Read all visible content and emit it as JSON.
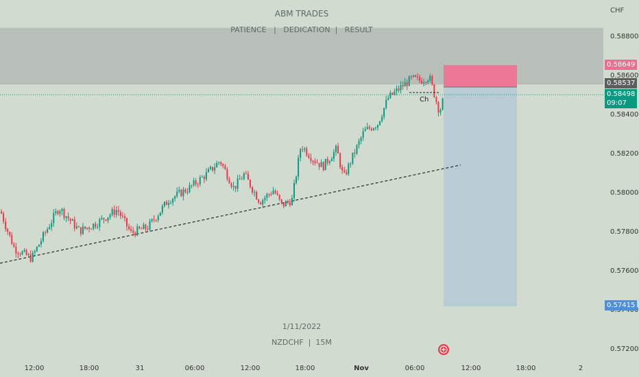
{
  "watermark": {
    "title": "ABM TRADES",
    "subtitle": "PATIENCE   |   DEDICATION  |   RESULT",
    "date": "1/11/2022",
    "symbol": "NZDCHF  |  15M"
  },
  "annotation": {
    "label": "Ch"
  },
  "colors": {
    "background": "#d1dbd0",
    "up": "#089981",
    "down": "#f23645",
    "zone": "#b7bfb8",
    "stop_zone": "#ec7796",
    "target_zone": "#b8ccd6",
    "current_price_line": "#089981"
  },
  "price_labels": {
    "stop": "0.58649",
    "entry": "0.58537",
    "current": "0.58498",
    "countdown": "09:07",
    "target": "0.57415"
  },
  "chart_data": {
    "type": "candlestick",
    "currency_label": "CHF",
    "ylim": [
      0.5716,
      0.5894
    ],
    "y_ticks": [
      "0.58800",
      "0.58600",
      "0.58400",
      "0.58200",
      "0.58000",
      "0.57800",
      "0.57600",
      "0.57400",
      "0.57200"
    ],
    "x_ticks": [
      "12:00",
      "18:00",
      "31",
      "06:00",
      "12:00",
      "18:00",
      "Nov",
      "06:00",
      "12:00",
      "18:00",
      "2"
    ],
    "supply_zone": [
      0.5855,
      0.5884
    ],
    "trendline": {
      "from": [
        0,
        0.57635
      ],
      "to": [
        672,
        0.58138
      ]
    },
    "position": {
      "type": "short",
      "entry": 0.58537,
      "stop": 0.58649,
      "target": 0.57415
    },
    "current_price": 0.58498,
    "anchors": [
      [
        0,
        0.579
      ],
      [
        8,
        0.5782
      ],
      [
        20,
        0.5771
      ],
      [
        45,
        0.5766
      ],
      [
        60,
        0.5776
      ],
      [
        85,
        0.5792
      ],
      [
        115,
        0.578
      ],
      [
        140,
        0.5784
      ],
      [
        170,
        0.5791
      ],
      [
        190,
        0.5779
      ],
      [
        215,
        0.5782
      ],
      [
        245,
        0.5796
      ],
      [
        275,
        0.5802
      ],
      [
        300,
        0.5809
      ],
      [
        320,
        0.5816
      ],
      [
        340,
        0.5802
      ],
      [
        355,
        0.5809
      ],
      [
        378,
        0.5795
      ],
      [
        398,
        0.5801
      ],
      [
        410,
        0.5793
      ],
      [
        425,
        0.5796
      ],
      [
        438,
        0.5824
      ],
      [
        455,
        0.5817
      ],
      [
        470,
        0.5813
      ],
      [
        490,
        0.5822
      ],
      [
        500,
        0.5807
      ],
      [
        512,
        0.5817
      ],
      [
        530,
        0.5831
      ],
      [
        550,
        0.5835
      ],
      [
        565,
        0.5848
      ],
      [
        585,
        0.5854
      ],
      [
        600,
        0.5858
      ],
      [
        612,
        0.5857
      ],
      [
        625,
        0.5859
      ],
      [
        640,
        0.5841
      ],
      [
        648,
        0.585
      ]
    ]
  }
}
